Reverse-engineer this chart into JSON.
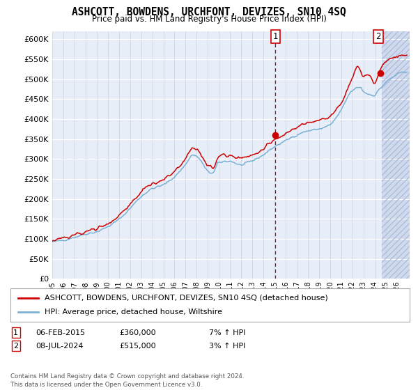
{
  "title": "ASHCOTT, BOWDENS, URCHFONT, DEVIZES, SN10 4SQ",
  "subtitle": "Price paid vs. HM Land Registry's House Price Index (HPI)",
  "ylim": [
    0,
    620000
  ],
  "yticks": [
    0,
    50000,
    100000,
    150000,
    200000,
    250000,
    300000,
    350000,
    400000,
    450000,
    500000,
    550000,
    600000
  ],
  "ytick_labels": [
    "£0",
    "£50K",
    "£100K",
    "£150K",
    "£200K",
    "£250K",
    "£300K",
    "£350K",
    "£400K",
    "£450K",
    "£500K",
    "£550K",
    "£600K"
  ],
  "legend_line1": "ASHCOTT, BOWDENS, URCHFONT, DEVIZES, SN10 4SQ (detached house)",
  "legend_line2": "HPI: Average price, detached house, Wiltshire",
  "marker1_date_str": "06-FEB-2015",
  "marker1_price": "£360,000",
  "marker1_hpi": "7% ↑ HPI",
  "marker1_val": 360000,
  "marker2_date_str": "08-JUL-2024",
  "marker2_price": "£515,000",
  "marker2_hpi": "3% ↑ HPI",
  "marker2_val": 515000,
  "footer": "Contains HM Land Registry data © Crown copyright and database right 2024.\nThis data is licensed under the Open Government Licence v3.0.",
  "line_color_red": "#cc0000",
  "line_color_blue": "#7ab0d4",
  "background_color": "#ffffff",
  "plot_bg_color": "#e8eef8",
  "grid_color": "#ffffff",
  "hatch_bg_color": "#d0daee"
}
